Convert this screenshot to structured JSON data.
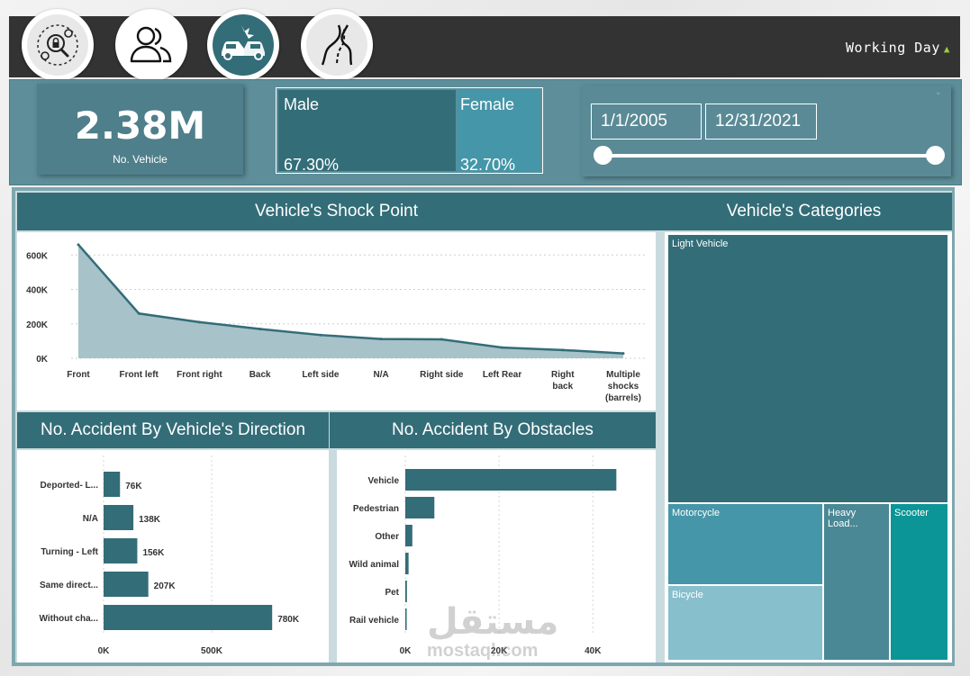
{
  "topbar": {
    "nav_icons": [
      "security-search-icon",
      "users-icon",
      "car-crash-icon",
      "road-icon"
    ],
    "filter_label": "Working Day",
    "filter_indicator": "▲"
  },
  "kpi": {
    "value": "2.38M",
    "label": "No. Vehicle"
  },
  "gender": {
    "male_label": "Male",
    "male_value": "67.30%",
    "female_label": "Female",
    "female_value": "32.70%"
  },
  "date_range": {
    "start": "1/1/2005",
    "end": "12/31/2021"
  },
  "colors": {
    "teal_dark": "#336d78",
    "teal_mid": "#4596a8",
    "teal_light": "#87bfcc",
    "teal_bright": "#0b9597",
    "topbar": "#333333"
  },
  "chart_data": [
    {
      "id": "shock",
      "type": "area",
      "title": "Vehicle's Shock Point",
      "categories": [
        "Front",
        "Front left",
        "Front right",
        "Back",
        "Left side",
        "N/A",
        "Right side",
        "Left Rear",
        "Right back",
        "Multiple shocks (barrels)"
      ],
      "values": [
        660000,
        260000,
        210000,
        170000,
        135000,
        112000,
        110000,
        62000,
        48000,
        28000
      ],
      "yticks": [
        "0K",
        "200K",
        "400K",
        "600K"
      ],
      "ylim": [
        0,
        680000
      ],
      "grid": true
    },
    {
      "id": "direction",
      "type": "bar",
      "orientation": "horizontal",
      "title": "No. Accident By Vehicle's Direction",
      "categories": [
        "Deported- L...",
        "N/A",
        "Turning - Left",
        "Same direct...",
        "Without cha..."
      ],
      "values": [
        76000,
        138000,
        156000,
        207000,
        780000
      ],
      "data_labels": [
        "76K",
        "138K",
        "156K",
        "207K",
        "780K"
      ],
      "xticks": [
        "0K",
        "500K"
      ],
      "xlim": [
        0,
        1000000
      ]
    },
    {
      "id": "obstacles",
      "type": "bar",
      "orientation": "horizontal",
      "title": "No. Accident By Obstacles",
      "categories": [
        "Vehicle",
        "Pedestrian",
        "Other",
        "Wild animal",
        "Pet",
        "Rail vehicle"
      ],
      "values": [
        45000,
        6200,
        1500,
        700,
        350,
        300
      ],
      "xticks": [
        "0K",
        "20K",
        "40K"
      ],
      "xlim": [
        0,
        53000
      ]
    },
    {
      "id": "categories",
      "type": "treemap",
      "title": "Vehicle's Categories",
      "items": [
        {
          "name": "Light Vehicle",
          "color": "#336d78"
        },
        {
          "name": "Motorcycle",
          "color": "#4596a8"
        },
        {
          "name": "Bicycle",
          "color": "#87bfcc"
        },
        {
          "name": "Heavy Load...",
          "color": "#4a8895"
        },
        {
          "name": "Scooter",
          "color": "#0b9597"
        }
      ]
    }
  ],
  "watermark": {
    "arabic": "مستقل",
    "latin": "mostaql.com"
  }
}
